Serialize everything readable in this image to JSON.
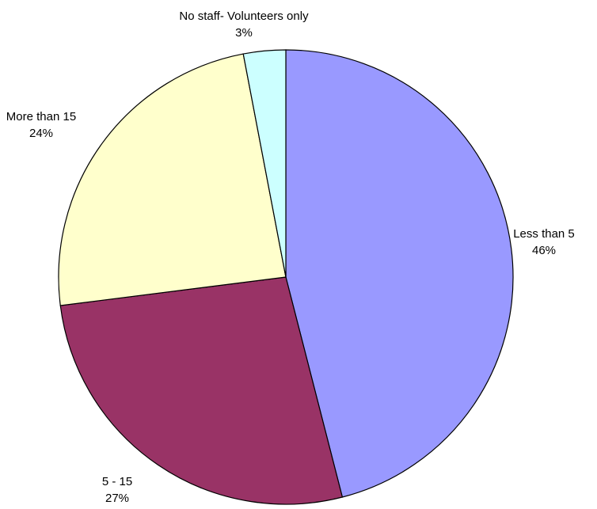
{
  "chart_data": {
    "type": "pie",
    "title": "",
    "slices": [
      {
        "label": "Less than 5",
        "value": 46,
        "value_label": "46%",
        "color": "#9999FF"
      },
      {
        "label": "5 - 15",
        "value": 27,
        "value_label": "27%",
        "color": "#993366"
      },
      {
        "label": "More than 15",
        "value": 24,
        "value_label": "24%",
        "color": "#FFFFCC"
      },
      {
        "label": "No staff- Volunteers only",
        "value": 3,
        "value_label": "3%",
        "color": "#CCFFFF"
      }
    ],
    "start_angle": "12 o'clock",
    "direction": "clockwise",
    "legend": "none"
  }
}
